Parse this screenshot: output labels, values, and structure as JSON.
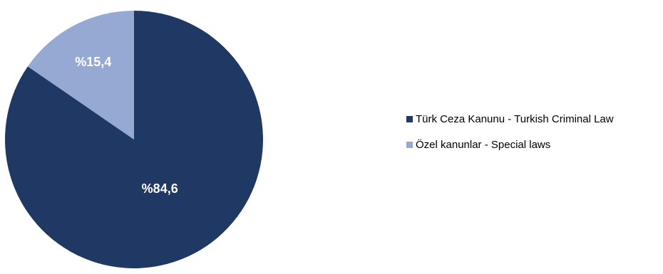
{
  "chart_data": {
    "type": "pie",
    "slices": [
      {
        "label": "Türk Ceza Kanunu - Turkish Criminal Law",
        "value": 84.6,
        "display": "%84,6",
        "color": "#1f3864"
      },
      {
        "label": "Özel kanunlar - Special laws",
        "value": 15.4,
        "display": "%15,4",
        "color": "#95a9d3"
      }
    ],
    "legend_position": "right",
    "start_angle_degrees": 0,
    "direction": "clockwise"
  }
}
